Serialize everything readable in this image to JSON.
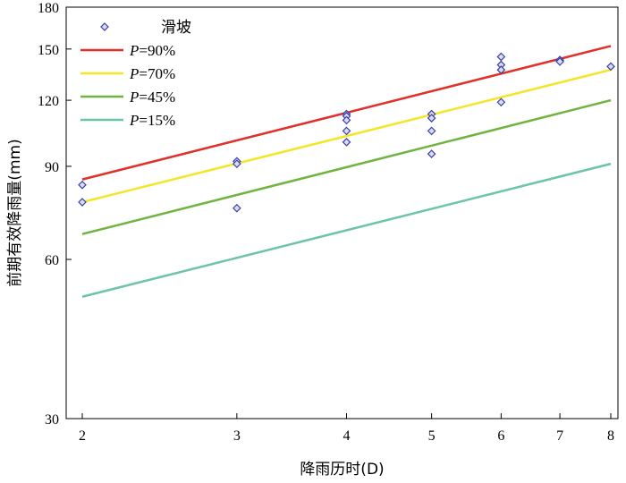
{
  "chart_data": {
    "type": "scatter",
    "x_scale": "log",
    "y_scale": "log",
    "xlim": [
      2,
      8
    ],
    "ylim": [
      30,
      180
    ],
    "x_ticks": [
      2,
      3,
      4,
      5,
      6,
      7,
      8
    ],
    "y_ticks": [
      30,
      60,
      90,
      120,
      150,
      180
    ],
    "xlabel": "降雨历时(D)",
    "ylabel": "前期有效降雨量(mm)",
    "legend_position": "top-left",
    "scatter_series": {
      "name": "滑坡",
      "color": "#3a3fa8",
      "points": [
        {
          "x": 2,
          "y": 83
        },
        {
          "x": 2,
          "y": 77
        },
        {
          "x": 3,
          "y": 92
        },
        {
          "x": 3,
          "y": 91
        },
        {
          "x": 3,
          "y": 75
        },
        {
          "x": 4,
          "y": 113
        },
        {
          "x": 4,
          "y": 112
        },
        {
          "x": 4,
          "y": 110
        },
        {
          "x": 4,
          "y": 105
        },
        {
          "x": 4,
          "y": 100
        },
        {
          "x": 5,
          "y": 113
        },
        {
          "x": 5,
          "y": 111
        },
        {
          "x": 5,
          "y": 105
        },
        {
          "x": 5,
          "y": 95
        },
        {
          "x": 6,
          "y": 145
        },
        {
          "x": 6,
          "y": 140
        },
        {
          "x": 6,
          "y": 137
        },
        {
          "x": 6,
          "y": 119
        },
        {
          "x": 7,
          "y": 143
        },
        {
          "x": 7,
          "y": 142
        },
        {
          "x": 8,
          "y": 139
        }
      ]
    },
    "series": [
      {
        "name_prefix": "P",
        "name_suffix": "=90%",
        "color": "#e0302a",
        "x": [
          2,
          8
        ],
        "y": [
          85,
          152
        ]
      },
      {
        "name_prefix": "P",
        "name_suffix": "=70%",
        "color": "#f4e527",
        "x": [
          2,
          8
        ],
        "y": [
          77,
          137
        ]
      },
      {
        "name_prefix": "P",
        "name_suffix": "=45%",
        "color": "#6eb43f",
        "x": [
          2,
          8
        ],
        "y": [
          67,
          120
        ]
      },
      {
        "name_prefix": "P",
        "name_suffix": "=15%",
        "color": "#6cc4a6",
        "x": [
          2,
          8
        ],
        "y": [
          51,
          91
        ]
      }
    ]
  }
}
